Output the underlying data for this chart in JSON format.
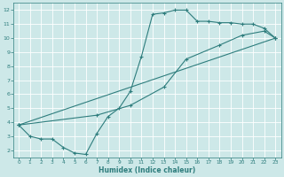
{
  "xlabel": "Humidex (Indice chaleur)",
  "bg_color": "#cde8e8",
  "line_color": "#2e7d7d",
  "grid_color": "#ffffff",
  "xlim": [
    -0.5,
    23.5
  ],
  "ylim": [
    1.5,
    12.5
  ],
  "xticks": [
    0,
    1,
    2,
    3,
    4,
    5,
    6,
    7,
    8,
    9,
    10,
    11,
    12,
    13,
    14,
    15,
    16,
    17,
    18,
    19,
    20,
    21,
    22,
    23
  ],
  "yticks": [
    2,
    3,
    4,
    5,
    6,
    7,
    8,
    9,
    10,
    11,
    12
  ],
  "line1_x": [
    0,
    1,
    2,
    3,
    4,
    5,
    6,
    7,
    8,
    9,
    10,
    11,
    12,
    13,
    14,
    15,
    16,
    17,
    18,
    19,
    20,
    21,
    22,
    23
  ],
  "line1_y": [
    3.8,
    3.0,
    2.8,
    2.8,
    2.2,
    1.8,
    1.7,
    3.2,
    4.4,
    5.0,
    6.2,
    8.7,
    11.7,
    11.8,
    12.0,
    12.0,
    11.2,
    11.2,
    11.1,
    11.1,
    11.0,
    11.0,
    10.7,
    10.0
  ],
  "line2_x": [
    0,
    23
  ],
  "line2_y": [
    3.8,
    10.0
  ],
  "line3_x": [
    0,
    7,
    10,
    13,
    15,
    18,
    20,
    22,
    23
  ],
  "line3_y": [
    3.8,
    4.5,
    5.2,
    6.5,
    8.5,
    9.5,
    10.2,
    10.5,
    10.0
  ]
}
